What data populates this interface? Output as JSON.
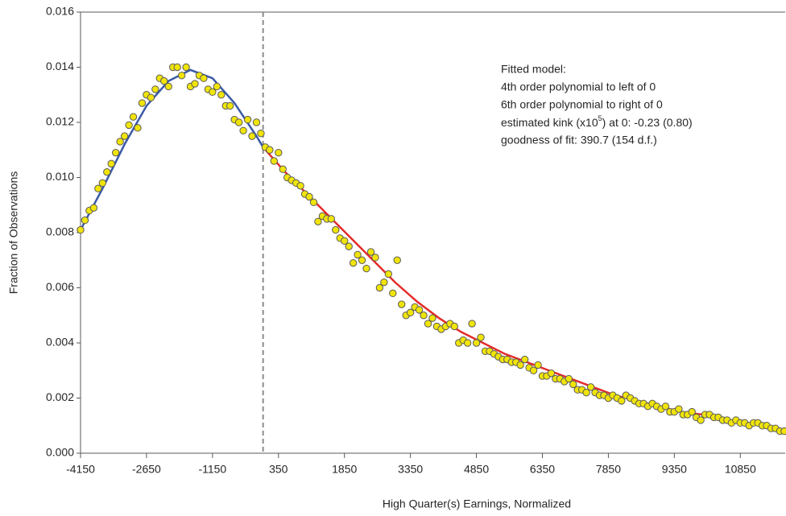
{
  "chart_data": {
    "type": "scatter",
    "xlabel": "High Quarter(s) Earnings, Normalized",
    "ylabel": "Fraction of Observations",
    "xlim": [
      -4150,
      11870
    ],
    "ylim": [
      0,
      0.016
    ],
    "xticks": [
      -4150,
      -2650,
      -1150,
      350,
      1850,
      3350,
      4850,
      6350,
      7850,
      9350,
      10850
    ],
    "yticks": [
      {
        "value": 0,
        "label": "0.000"
      },
      {
        "value": 0.002,
        "label": "0.002"
      },
      {
        "value": 0.004,
        "label": "0.004"
      },
      {
        "value": 0.006,
        "label": "0.006"
      },
      {
        "value": 0.008,
        "label": "0.008"
      },
      {
        "value": 0.01,
        "label": "0.010"
      },
      {
        "value": 0.012,
        "label": "0.012"
      },
      {
        "value": 0.014,
        "label": "0.014"
      },
      {
        "value": 0.016,
        "label": "0.016"
      }
    ],
    "vline_x": 0,
    "vline_color": "#8c8c8c",
    "annotation": {
      "lines": [
        "Fitted model:",
        "4th order polynomial to left of 0",
        "6th order polynomial to right of 0"
      ],
      "kink": [
        "estimated kink (x10",
        "5",
        ") at 0:  -0.23 (0.80)"
      ],
      "fit": "goodness of fit: 390.7 (154 d.f.)"
    },
    "series": [
      {
        "kind": "points",
        "color": "#f0e40a",
        "edgecolor": "#5a5a5a",
        "x": [
          -4150,
          -4050,
          -3950,
          -3850,
          -3750,
          -3650,
          -3550,
          -3450,
          -3350,
          -3250,
          -3150,
          -3050,
          -2950,
          -2850,
          -2750,
          -2650,
          -2550,
          -2450,
          -2350,
          -2250,
          -2150,
          -2050,
          -1950,
          -1850,
          -1750,
          -1650,
          -1550,
          -1450,
          -1350,
          -1250,
          -1150,
          -1050,
          -950,
          -850,
          -750,
          -650,
          -550,
          -450,
          -350,
          -250,
          -150,
          -50,
          50,
          150,
          250,
          350,
          450,
          550,
          650,
          750,
          850,
          950,
          1050,
          1150,
          1250,
          1350,
          1450,
          1550,
          1650,
          1750,
          1850,
          1950,
          2050,
          2150,
          2250,
          2350,
          2450,
          2550,
          2650,
          2750,
          2850,
          2950,
          3050,
          3150,
          3250,
          3350,
          3450,
          3550,
          3650,
          3750,
          3850,
          3950,
          4050,
          4150,
          4250,
          4350,
          4450,
          4550,
          4650,
          4750,
          4850,
          4950,
          5050,
          5150,
          5250,
          5350,
          5450,
          5550,
          5650,
          5750,
          5850,
          5950,
          6050,
          6150,
          6250,
          6350,
          6450,
          6550,
          6650,
          6750,
          6850,
          6950,
          7050,
          7150,
          7250,
          7350,
          7450,
          7550,
          7650,
          7750,
          7850,
          7950,
          8050,
          8150,
          8250,
          8350,
          8450,
          8550,
          8650,
          8750,
          8850,
          8950,
          9050,
          9150,
          9250,
          9350,
          9450,
          9550,
          9650,
          9750,
          9850,
          9950,
          10050,
          10150,
          10250,
          10350,
          10450,
          10550,
          10650,
          10750,
          10850,
          10950,
          11050,
          11150,
          11250,
          11350,
          11450,
          11550,
          11650,
          11750,
          11850
        ],
        "values": [
          0.0081,
          0.00845,
          0.0088,
          0.0089,
          0.0096,
          0.0098,
          0.0102,
          0.0105,
          0.0109,
          0.0113,
          0.0115,
          0.0119,
          0.0122,
          0.0118,
          0.0127,
          0.013,
          0.0129,
          0.0132,
          0.0136,
          0.0135,
          0.0133,
          0.014,
          0.014,
          0.0137,
          0.014,
          0.0133,
          0.0134,
          0.0137,
          0.0136,
          0.0132,
          0.0131,
          0.0133,
          0.013,
          0.0126,
          0.0126,
          0.0121,
          0.012,
          0.0117,
          0.0121,
          0.0115,
          0.012,
          0.0116,
          0.0111,
          0.011,
          0.0106,
          0.0109,
          0.0103,
          0.01,
          0.0099,
          0.0098,
          0.0097,
          0.0094,
          0.0093,
          0.0091,
          0.0084,
          0.0086,
          0.0085,
          0.0085,
          0.0081,
          0.0078,
          0.0077,
          0.0075,
          0.0069,
          0.0072,
          0.007,
          0.0067,
          0.0073,
          0.0071,
          0.006,
          0.0062,
          0.0065,
          0.0058,
          0.007,
          0.0054,
          0.005,
          0.0051,
          0.0053,
          0.0052,
          0.005,
          0.0047,
          0.0049,
          0.0046,
          0.0045,
          0.0046,
          0.0047,
          0.0046,
          0.004,
          0.0041,
          0.004,
          0.0047,
          0.004,
          0.0042,
          0.0037,
          0.0037,
          0.0036,
          0.0035,
          0.0034,
          0.0034,
          0.0033,
          0.0033,
          0.0032,
          0.0034,
          0.0031,
          0.003,
          0.0032,
          0.0028,
          0.0028,
          0.0029,
          0.0027,
          0.0027,
          0.0026,
          0.0027,
          0.0025,
          0.0023,
          0.0023,
          0.0022,
          0.0024,
          0.0022,
          0.0021,
          0.0021,
          0.002,
          0.0021,
          0.002,
          0.0019,
          0.0021,
          0.002,
          0.0019,
          0.0018,
          0.0018,
          0.0017,
          0.0018,
          0.0017,
          0.0016,
          0.0017,
          0.0015,
          0.0015,
          0.0016,
          0.0014,
          0.0014,
          0.0015,
          0.0013,
          0.0012,
          0.0014,
          0.0014,
          0.0013,
          0.0013,
          0.0012,
          0.0012,
          0.0011,
          0.0012,
          0.0011,
          0.0011,
          0.001,
          0.0011,
          0.0011,
          0.001,
          0.001,
          0.0009,
          0.0009,
          0.0008,
          0.0008
        ]
      },
      {
        "kind": "line",
        "color": "#3b5ba5",
        "x": [
          -4150,
          -3650,
          -3150,
          -2650,
          -2150,
          -1650,
          -1150,
          -650,
          -150,
          0
        ],
        "values": [
          0.0081,
          0.0096,
          0.0112,
          0.0126,
          0.0135,
          0.0139,
          0.0136,
          0.0127,
          0.0115,
          0.0111
        ]
      },
      {
        "kind": "line",
        "color": "#e52b2b",
        "x": [
          0,
          500,
          1000,
          1500,
          2000,
          2500,
          3000,
          3500,
          4000,
          4500,
          5000,
          5500,
          6000,
          6500,
          7000,
          7500,
          8000,
          8500,
          9000,
          9500,
          10000,
          10500,
          11000,
          11500,
          11850
        ],
        "values": [
          0.0111,
          0.0102,
          0.0094,
          0.0086,
          0.0078,
          0.007,
          0.0062,
          0.0055,
          0.0049,
          0.0044,
          0.004,
          0.0036,
          0.0033,
          0.003,
          0.0027,
          0.0024,
          0.0021,
          0.0019,
          0.0017,
          0.0015,
          0.0014,
          0.0012,
          0.0011,
          0.001,
          0.0008
        ]
      }
    ]
  }
}
